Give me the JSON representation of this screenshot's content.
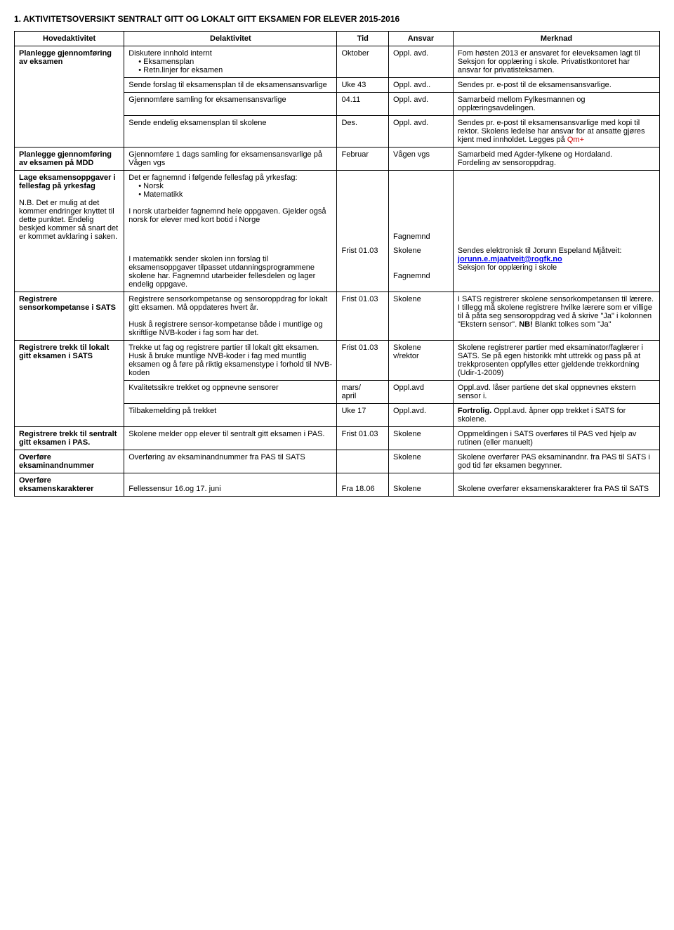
{
  "title": "1. AKTIVITETSOVERSIKT SENTRALT GITT OG LOKALT GITT  EKSAMEN FOR ELEVER 2015-2016",
  "headers": {
    "hoved": "Hovedaktivitet",
    "del": "Delaktivitet",
    "tid": "Tid",
    "ansvar": "Ansvar",
    "merknad": "Merknad"
  },
  "rows": {
    "r1": {
      "hoved": "Planlegge gjennomføring av eksamen",
      "del_intro": "Diskutere innhold internt",
      "del_b1": "Eksamensplan",
      "del_b2": "Retn.linjer for eksamen",
      "tid": "Oktober",
      "ansvar": "Oppl. avd.",
      "merknad": "Fom høsten 2013 er ansvaret for eleveksamen lagt til Seksjon for opplæring i skole. Privatistkontoret har ansvar for privatisteksamen."
    },
    "r2": {
      "del": "Sende forslag til eksamensplan til de eksamensansvarlige",
      "tid": "Uke 43",
      "ansvar": "Oppl. avd..",
      "merknad": "Sendes pr. e-post til de eksamensansvarlige."
    },
    "r3": {
      "del": "Gjennomføre samling for eksamensansvarlige",
      "tid": "04.11",
      "ansvar": "Oppl. avd.",
      "merknad": "Samarbeid mellom Fylkesmannen og opplæringsavdelingen."
    },
    "r4": {
      "del": "Sende endelig eksamensplan til skolene",
      "tid": "Des.",
      "ansvar": "Oppl. avd.",
      "merknad_a": "Sendes pr. e-post til eksamensansvarlige med kopi til rektor. Skolens ledelse har ansvar for at ansatte gjøres kjent med innholdet. Legges på ",
      "merknad_red": "Qm+"
    },
    "r5": {
      "hoved": "Planlegge gjennomføring av eksamen på MDD",
      "del": "Gjennomføre 1 dags samling for eksamensansvarlige på Vågen vgs",
      "tid": "Februar",
      "ansvar": "Vågen vgs",
      "merknad": "Samarbeid med Agder-fylkene og Hordaland.\nFordeling av sensoroppdrag."
    },
    "r6a": {
      "hoved_a": "Lage eksamensoppgaver i fellesfag på yrkesfag",
      "hoved_b": "N.B. Det er mulig at det kommer endringer knyttet til dette punktet. Endelig beskjed kommer så snart det er kommet avklaring i saken.",
      "del_intro": "Det er fagnemnd i følgende fellesfag på yrkesfag:",
      "del_b1": "Norsk",
      "del_b2": "Matematikk",
      "del_para2": "I norsk utarbeider fagnemnd hele oppgaven. Gjelder også norsk for elever med kort botid i Norge",
      "ansvar_mid": "Fagnemnd"
    },
    "r6b": {
      "del": "I matematikk sender skolen inn forslag til eksamensoppgaver tilpasset utdanningsprogrammene skolene har. Fagnemnd utarbeider fellesdelen og lager endelig oppgave.",
      "tid": "Frist 01.03",
      "ansvar1": "Skolene",
      "ansvar2": "Fagnemnd",
      "merknad_a": "Sendes elektronisk til Jorunn Espeland Mjåtveit:",
      "merknad_link": "jorunn.e.mjaatveit@rogfk.no",
      "merknad_b": "Seksjon for opplæring i skole"
    },
    "r7": {
      "hoved": "Registrere sensorkompetanse i SATS",
      "del_a": "Registrere sensorkompetanse og sensoroppdrag for lokalt gitt eksamen. Må oppdateres hvert år.",
      "del_b": "Husk å registrere sensor-kompetanse både i muntlige og skriftlige NVB-koder i fag som har det.",
      "tid": "Frist 01.03",
      "ansvar": "Skolene",
      "merknad_a": "I SATS registrerer skolene sensorkompetansen til lærere.\nI tillegg må skolene registrere hvilke lærere som er villige til å påta seg sensoroppdrag ved å skrive \"Ja\" i kolonnen \"Ekstern sensor\". ",
      "merknad_nb": "NB!",
      "merknad_b": " Blankt tolkes som \"Ja\""
    },
    "r8": {
      "hoved": "Registrere trekk til lokalt gitt eksamen i SATS",
      "del": "Trekke ut fag og registrere partier til lokalt gitt eksamen.\nHusk å bruke muntlige NVB-koder i fag med muntlig eksamen og å føre på riktig eksamenstype i forhold til NVB-koden",
      "tid": "Frist 01.03",
      "ansvar": "Skolene v/rektor",
      "merknad": "Skolene registrerer partier med eksaminator/faglærer i SATS. Se på egen historikk mht uttrekk og pass på at trekkprosenten oppfylles etter gjeldende trekkordning (Udir-1-2009)"
    },
    "r9": {
      "del": "Kvalitetssikre trekket og oppnevne sensorer",
      "tid": "mars/\napril",
      "ansvar": "Oppl.avd",
      "merknad": "Oppl.avd. låser partiene det skal oppnevnes ekstern sensor i."
    },
    "r10": {
      "del": "Tilbakemelding på trekket",
      "tid": "Uke 17",
      "ansvar": "Oppl.avd.",
      "merknad_bold": "Fortrolig.",
      "merknad": " Oppl.avd. åpner opp trekket i SATS for skolene."
    },
    "r11": {
      "hoved": "Registrere trekk til sentralt gitt eksamen i PAS.",
      "del": "Skolene melder opp elever til sentralt gitt eksamen i PAS.",
      "tid": "Frist 01.03",
      "ansvar": "Skolene",
      "merknad": "Oppmeldingen i SATS overføres til PAS ved hjelp av rutinen (eller manuelt)"
    },
    "r12": {
      "hoved": "Overføre eksaminandnummer",
      "del": "Overføring av eksaminandnummer fra PAS til SATS",
      "tid": "",
      "ansvar": "Skolene",
      "merknad": "Skolene overfører PAS eksaminandnr. fra PAS til SATS i god tid før eksamen begynner."
    },
    "r13": {
      "hoved": "Overføre eksamenskarakterer",
      "del": "Fellessensur 16.og 17. juni",
      "tid": "Fra 18.06",
      "ansvar": "Skolene",
      "merknad": "Skolene overfører eksamenskarakterer fra PAS til SATS"
    }
  }
}
